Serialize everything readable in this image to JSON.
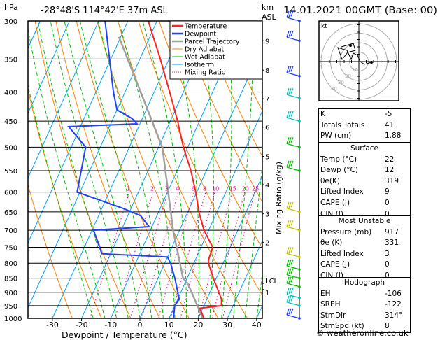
{
  "header": {
    "pressure_unit": "hPa",
    "location": "-28°48'S 114°42'E 37m ASL",
    "km_label": "km",
    "asl_label": "ASL",
    "datetime": "14.01.2021 00GMT (Base: 00)"
  },
  "legend": [
    "Temperature",
    "Dewpoint",
    "Parcel Trajectory",
    "Dry Adiabat",
    "Wet Adiabat",
    "Isotherm",
    "Mixing Ratio"
  ],
  "colors": {
    "temperature": "#ff2020",
    "dewpoint": "#2040ff",
    "parcel": "#a0a0a0",
    "dry": "#ff8000",
    "wet": "#00c000",
    "isotherm": "#00a0ff",
    "mixing": "#e0008a"
  },
  "chart_data": {
    "type": "line",
    "title": "-28°48'S 114°42'E 37m ASL",
    "xlabel": "Dewpoint / Temperature (°C)",
    "ylabel": "hPa",
    "right_label": "Mixing Ratio (g/kg)",
    "xlim": [
      -35,
      40
    ],
    "ylim": [
      1000,
      300
    ],
    "x_ticks": [
      -30,
      -20,
      -10,
      0,
      10,
      20,
      30,
      40
    ],
    "p_ticks": [
      300,
      350,
      400,
      450,
      500,
      550,
      600,
      650,
      700,
      750,
      800,
      850,
      900,
      950,
      1000
    ],
    "km_ticks": [
      {
        "label": "9",
        "p": 325
      },
      {
        "label": "8",
        "p": 366
      },
      {
        "label": "7",
        "p": 411
      },
      {
        "label": "6",
        "p": 461
      },
      {
        "label": "5",
        "p": 519
      },
      {
        "label": "4",
        "p": 582
      },
      {
        "label": "3",
        "p": 655
      },
      {
        "label": "2",
        "p": 735
      },
      {
        "label": "LCL",
        "p": 868
      },
      {
        "label": "1",
        "p": 890
      }
    ],
    "mixing_ratios": [
      "1",
      "2",
      "3",
      "4",
      "6",
      "8",
      "10",
      "15",
      "20",
      "25"
    ],
    "series": [
      {
        "name": "Temperature",
        "points": [
          [
            1000,
            22
          ],
          [
            960,
            19
          ],
          [
            950,
            26
          ],
          [
            925,
            25
          ],
          [
            850,
            19
          ],
          [
            800,
            15
          ],
          [
            790,
            14.5
          ],
          [
            750,
            14
          ],
          [
            700,
            8.4
          ],
          [
            650,
            3.8
          ],
          [
            600,
            -0.3
          ],
          [
            550,
            -5.3
          ],
          [
            500,
            -11.5
          ],
          [
            450,
            -17.5
          ],
          [
            400,
            -24.7
          ],
          [
            350,
            -33
          ],
          [
            300,
            -43
          ]
        ]
      },
      {
        "name": "Dewpoint",
        "points": [
          [
            1000,
            11.5
          ],
          [
            950,
            10
          ],
          [
            925,
            10.5
          ],
          [
            850,
            5.8
          ],
          [
            800,
            2
          ],
          [
            780,
            0
          ],
          [
            770,
            -23
          ],
          [
            700,
            -29.5
          ],
          [
            690,
            -11
          ],
          [
            660,
            -15.6
          ],
          [
            640,
            -23
          ],
          [
            600,
            -41
          ],
          [
            500,
            -45
          ],
          [
            460,
            -54
          ],
          [
            455,
            -31
          ],
          [
            445,
            -33.6
          ],
          [
            430,
            -40
          ],
          [
            400,
            -44
          ],
          [
            300,
            -57.8
          ]
        ]
      },
      {
        "name": "Parcel Trajectory",
        "points": [
          [
            1000,
            21.6
          ],
          [
            868,
            11
          ],
          [
            850,
            8.6
          ],
          [
            700,
            -2.2
          ],
          [
            500,
            -18.7
          ],
          [
            320,
            -50.6
          ]
        ]
      }
    ]
  },
  "indices": {
    "k_label": "K",
    "k": "-5",
    "tt_label": "Totals Totals",
    "tt": "41",
    "pw_label": "PW (cm)",
    "pw": "1.88"
  },
  "surface": {
    "title": "Surface",
    "rows": [
      [
        "Temp (°C)",
        "22"
      ],
      [
        "Dewp (°C)",
        "12"
      ],
      [
        "θe(K)",
        "319"
      ],
      [
        "Lifted Index",
        "9"
      ],
      [
        "CAPE (J)",
        "0"
      ],
      [
        "CIN (J)",
        "0"
      ]
    ]
  },
  "most_unstable": {
    "title": "Most Unstable",
    "rows": [
      [
        "Pressure (mb)",
        "917"
      ],
      [
        "θe (K)",
        "331"
      ],
      [
        "Lifted Index",
        "3"
      ],
      [
        "CAPE (J)",
        "0"
      ],
      [
        "CIN (J)",
        "0"
      ]
    ]
  },
  "hodograph": {
    "title": "Hodograph",
    "unit": "kt",
    "rings": [
      "10",
      "20",
      "30",
      "40"
    ],
    "rows": [
      [
        "EH",
        "-106"
      ],
      [
        "SREH",
        "-122"
      ],
      [
        "StmDir",
        "314°"
      ],
      [
        "StmSpd (kt)",
        "8"
      ]
    ]
  },
  "copyright": "© weatheronline.co.uk"
}
